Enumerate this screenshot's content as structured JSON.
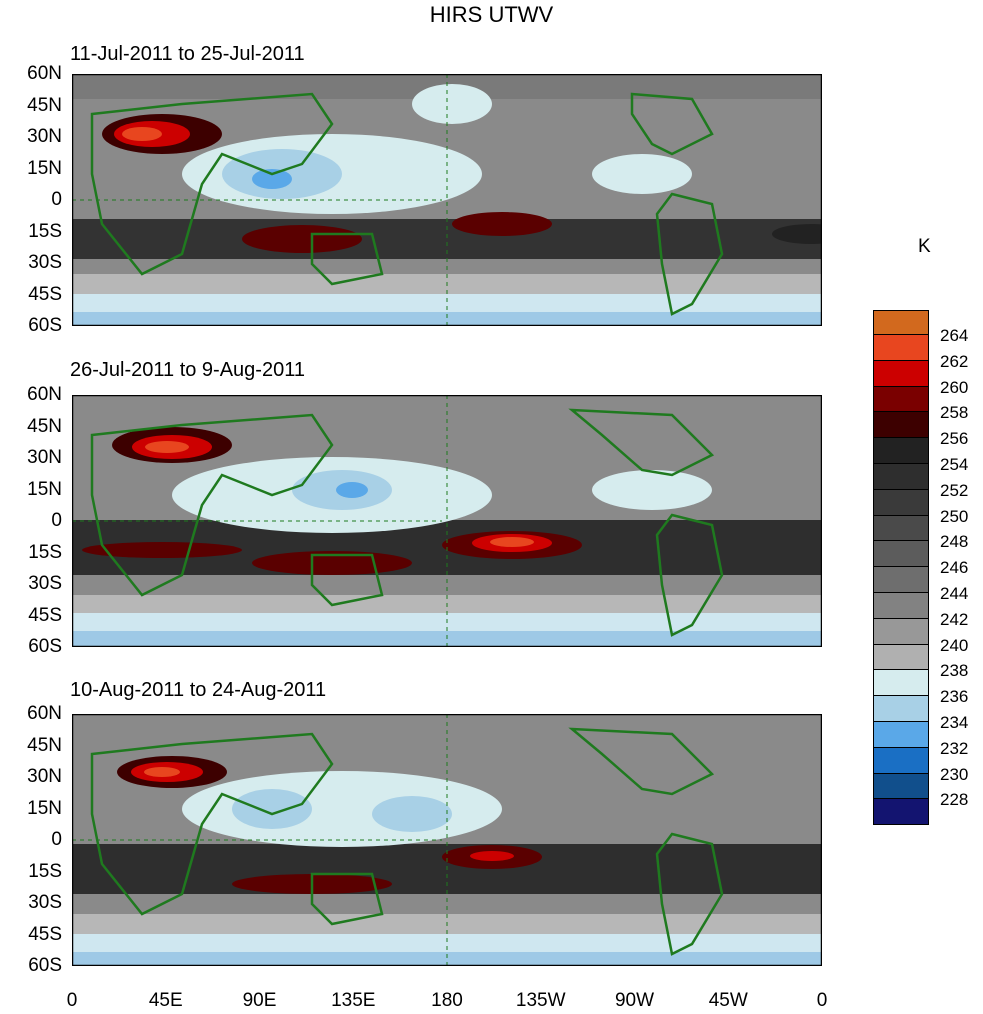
{
  "title": "HIRS UTWV",
  "panels": [
    {
      "title": "11-Jul-2011 to 25-Jul-2011"
    },
    {
      "title": "26-Jul-2011 to 9-Aug-2011"
    },
    {
      "title": "10-Aug-2011 to 24-Aug-2011"
    }
  ],
  "lat_labels": [
    "60N",
    "45N",
    "30N",
    "15N",
    "0",
    "15S",
    "30S",
    "45S",
    "60S"
  ],
  "lon_labels": [
    "0",
    "45E",
    "90E",
    "135E",
    "180",
    "135W",
    "90W",
    "45W",
    "0"
  ],
  "colorbar": {
    "unit": "K",
    "labels": [
      "264",
      "262",
      "260",
      "258",
      "256",
      "254",
      "252",
      "250",
      "248",
      "246",
      "244",
      "242",
      "240",
      "238",
      "236",
      "234",
      "232",
      "230",
      "228"
    ],
    "colors": [
      "#d2691e",
      "#e8461f",
      "#cc0000",
      "#7a0000",
      "#3d0000",
      "#222222",
      "#2e2e2e",
      "#3a3a3a",
      "#4a4a4a",
      "#5c5c5c",
      "#6e6e6e",
      "#828282",
      "#989898",
      "#b0b0b0",
      "#d6ecee",
      "#a8d0e6",
      "#5aa8e8",
      "#1a6fc4",
      "#114f8c",
      "#131470"
    ]
  },
  "colors": {
    "coastline": "#1f7a1f",
    "frame": "#000000"
  }
}
